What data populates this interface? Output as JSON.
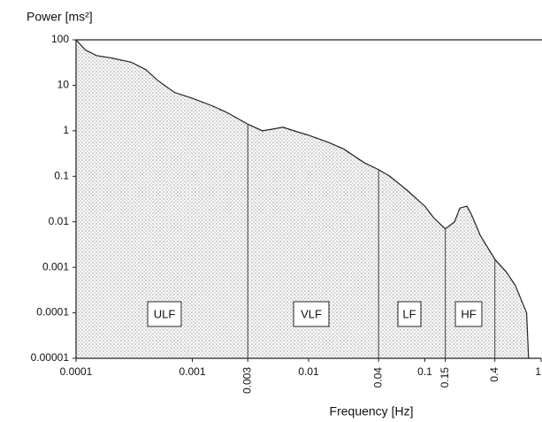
{
  "chart_data": {
    "type": "area",
    "y_label": "Power [ms²]",
    "x_label": "Frequency [Hz]",
    "x": [
      0.0001,
      0.00012,
      0.00015,
      0.0002,
      0.0003,
      0.0004,
      0.0005,
      0.0007,
      0.001,
      0.0015,
      0.002,
      0.003,
      0.004,
      0.005,
      0.006,
      0.008,
      0.01,
      0.015,
      0.02,
      0.03,
      0.04,
      0.05,
      0.07,
      0.1,
      0.12,
      0.15,
      0.18,
      0.2,
      0.23,
      0.25,
      0.3,
      0.4,
      0.5,
      0.6,
      0.75,
      0.78
    ],
    "values": [
      100,
      60,
      45,
      40,
      32,
      22,
      13,
      7,
      5.2,
      3.5,
      2.5,
      1.4,
      1.0,
      1.1,
      1.2,
      0.95,
      0.8,
      0.55,
      0.4,
      0.2,
      0.14,
      0.1,
      0.05,
      0.022,
      0.012,
      0.007,
      0.01,
      0.02,
      0.022,
      0.015,
      0.005,
      0.0015,
      0.0008,
      0.0004,
      0.0001,
      1e-05
    ],
    "xlim": [
      0.0001,
      1
    ],
    "ylim": [
      1e-05,
      100
    ],
    "xticks": [
      0.0001,
      0.001,
      0.003,
      0.01,
      0.04,
      0.1,
      0.15,
      0.4,
      1
    ],
    "yticks": [
      1e-05,
      0.0001,
      0.001,
      0.01,
      0.1,
      1,
      10,
      100
    ],
    "log_x": true,
    "log_y": true,
    "grid": false,
    "annotations": [
      "ULF",
      "VLF",
      "LF",
      "HF"
    ]
  }
}
